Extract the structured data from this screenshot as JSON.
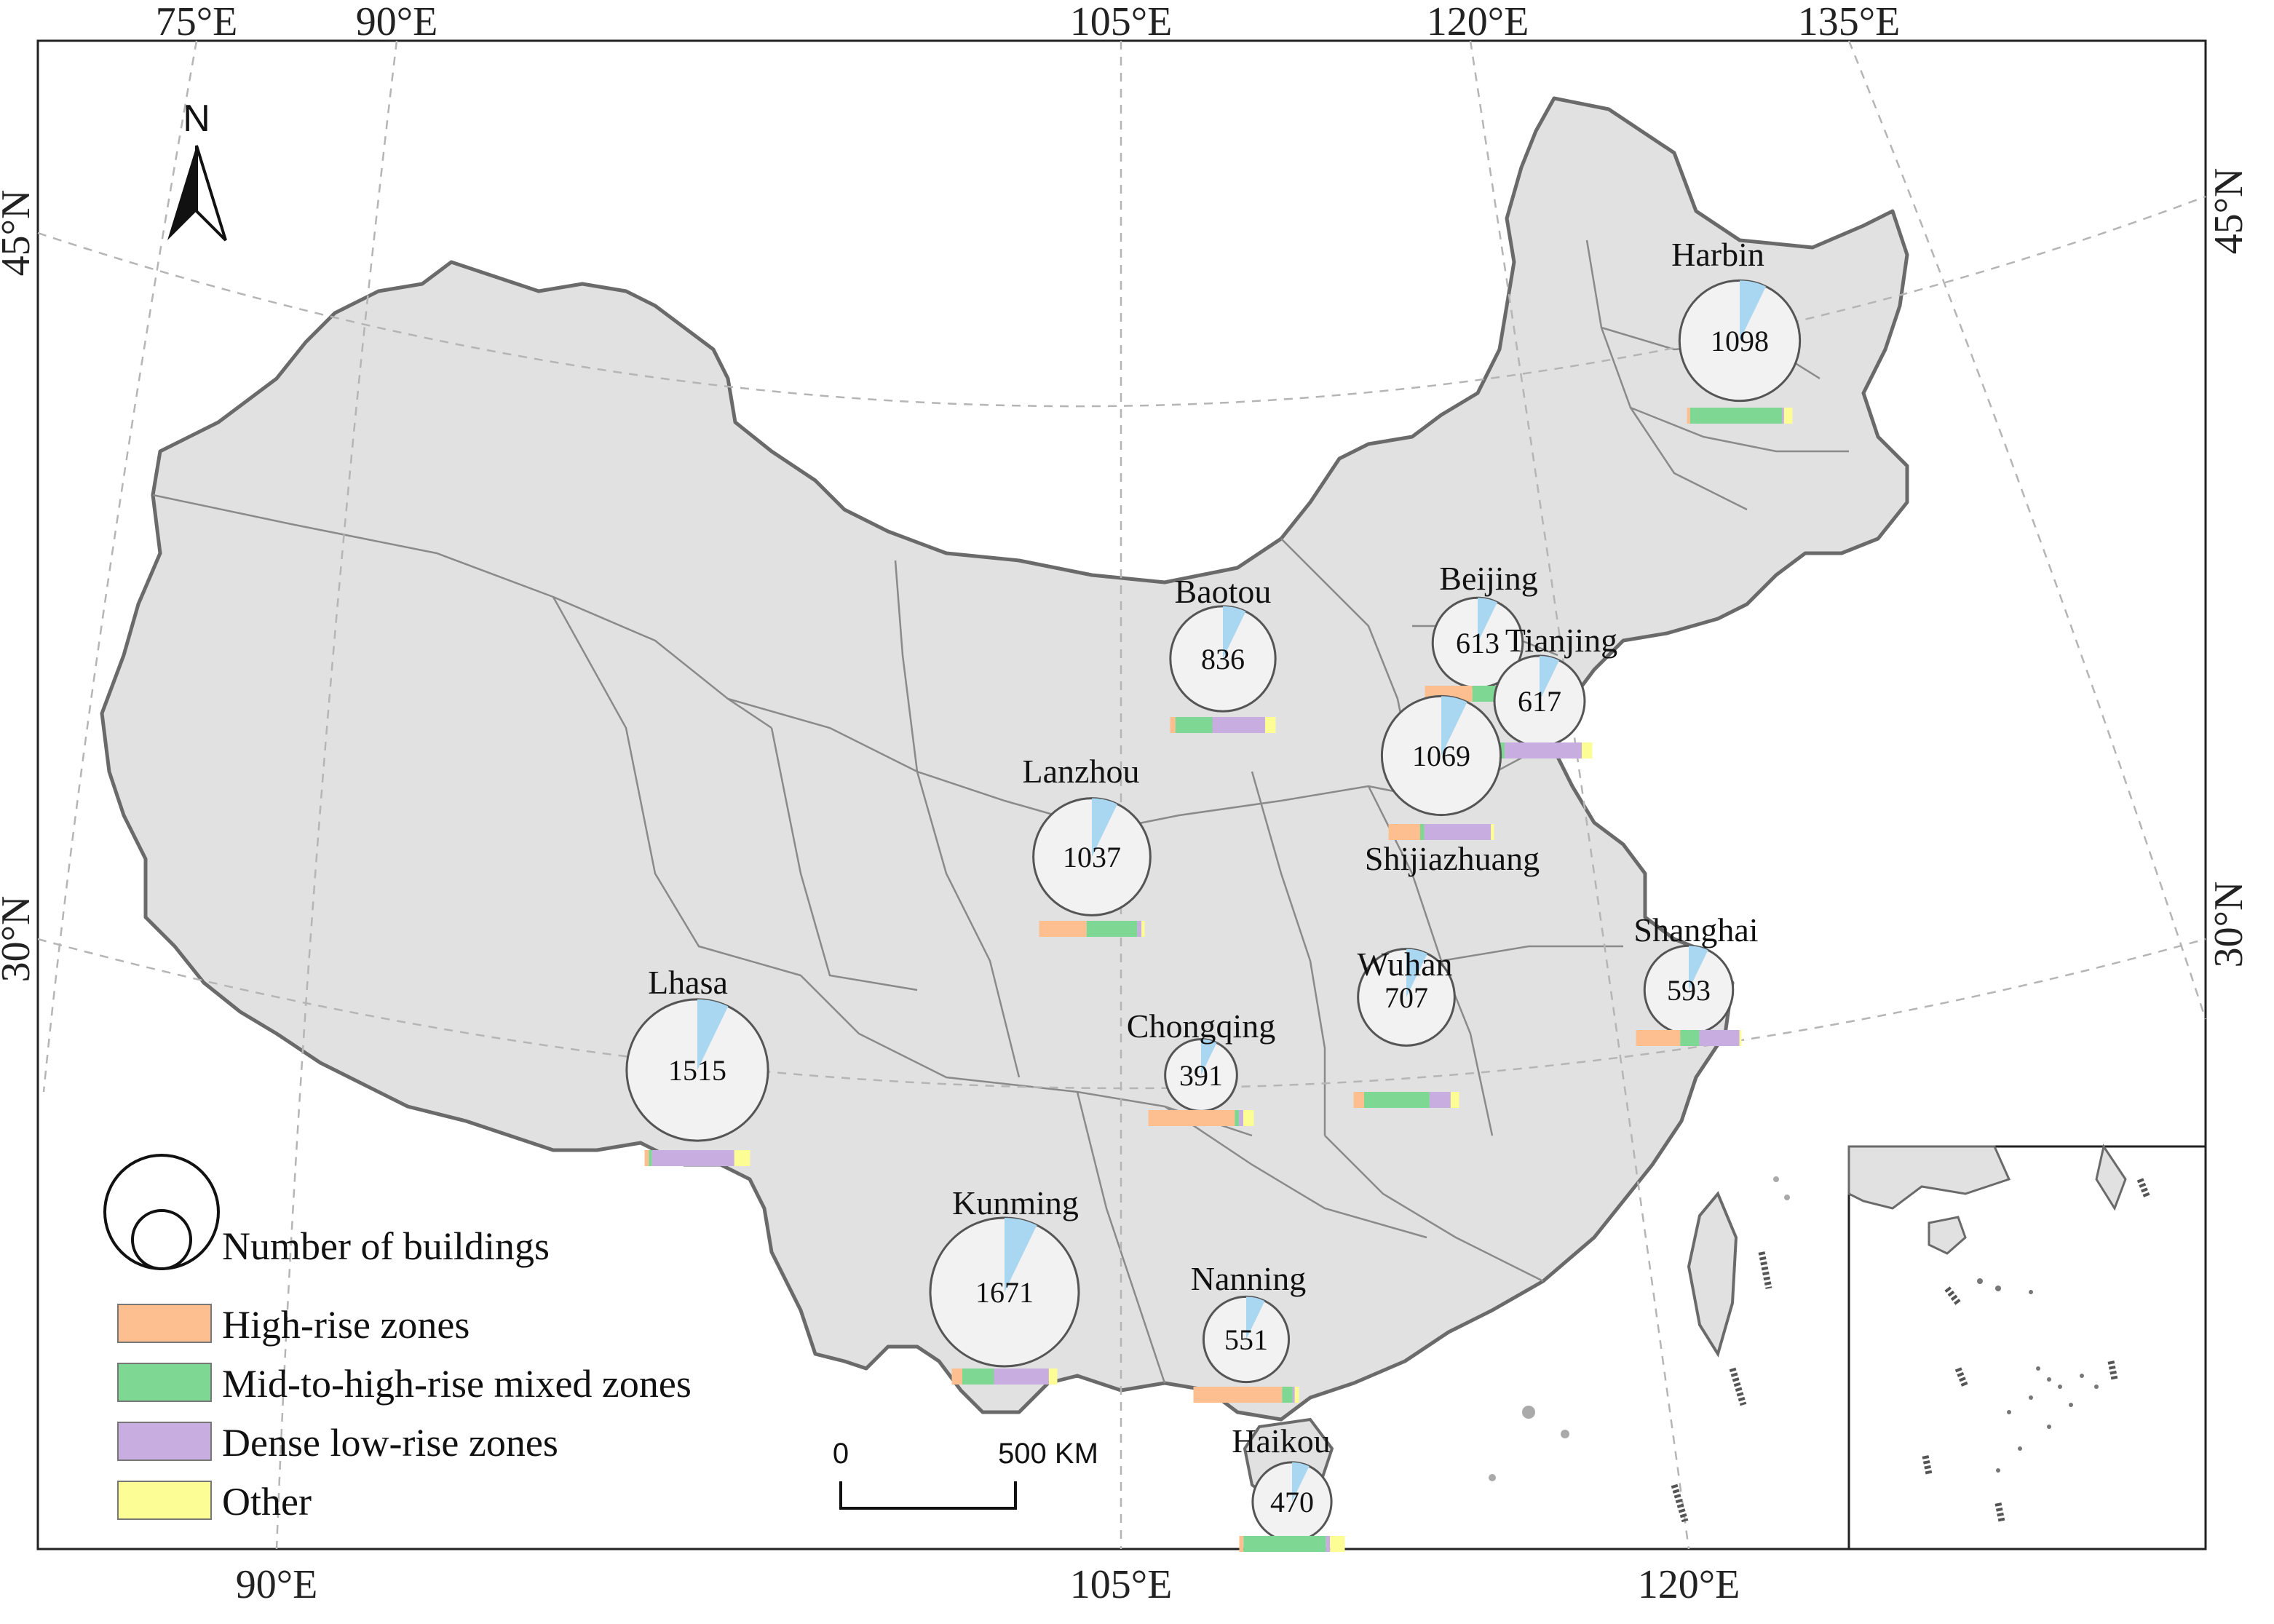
{
  "graticule": {
    "top_labels": [
      "75°E",
      "90°E",
      "105°E",
      "120°E",
      "135°E"
    ],
    "bottom_labels": [
      "90°E",
      "105°E",
      "120°E"
    ],
    "left_labels": [
      "45°N",
      "30°N"
    ],
    "right_labels": [
      "45°N",
      "30°N"
    ]
  },
  "north_arrow": {
    "label": "N"
  },
  "categories": [
    {
      "name": "High-rise zones",
      "color": "#fdbf8f"
    },
    {
      "name": "Mid-to-high-rise mixed zones",
      "color": "#7fd794"
    },
    {
      "name": "Dense low-rise zones",
      "color": "#c8aee0"
    },
    {
      "name": "Other",
      "color": "#fdfd96"
    }
  ],
  "legend": {
    "size_label": "Number of buildings",
    "items": [
      "High-rise zones",
      "Mid-to-high-rise mixed zones",
      "Dense low-rise zones",
      "Other"
    ]
  },
  "scale_bar": {
    "start": "0",
    "end": "500 KM"
  },
  "cities": [
    {
      "name": "Harbin",
      "buildings": "1098",
      "shares": [
        0.03,
        0.87,
        0.02,
        0.08
      ]
    },
    {
      "name": "Baotou",
      "buildings": "836",
      "shares": [
        0.05,
        0.35,
        0.5,
        0.1
      ]
    },
    {
      "name": "Beijing",
      "buildings": "613",
      "shares": [
        0.45,
        0.48,
        0.04,
        0.03
      ]
    },
    {
      "name": "Tianjing",
      "buildings": "617",
      "shares": [
        0.05,
        0.12,
        0.73,
        0.1
      ]
    },
    {
      "name": "Shijiazhuang",
      "buildings": "1069",
      "shares": [
        0.3,
        0.04,
        0.63,
        0.03
      ]
    },
    {
      "name": "Lanzhou",
      "buildings": "1037",
      "shares": [
        0.45,
        0.48,
        0.04,
        0.03
      ]
    },
    {
      "name": "Shanghai",
      "buildings": "593",
      "shares": [
        0.42,
        0.18,
        0.38,
        0.02
      ]
    },
    {
      "name": "Wuhan",
      "buildings": "707",
      "shares": [
        0.1,
        0.62,
        0.2,
        0.08
      ]
    },
    {
      "name": "Lhasa",
      "buildings": "1515",
      "shares": [
        0.04,
        0.03,
        0.78,
        0.15
      ]
    },
    {
      "name": "Chongqing",
      "buildings": "391",
      "shares": [
        0.82,
        0.04,
        0.04,
        0.1
      ]
    },
    {
      "name": "Kunming",
      "buildings": "1671",
      "shares": [
        0.1,
        0.3,
        0.52,
        0.08
      ]
    },
    {
      "name": "Nanning",
      "buildings": "551",
      "shares": [
        0.84,
        0.1,
        0.02,
        0.04
      ]
    },
    {
      "name": "Haikou",
      "buildings": "470",
      "shares": [
        0.04,
        0.78,
        0.04,
        0.14
      ]
    }
  ]
}
